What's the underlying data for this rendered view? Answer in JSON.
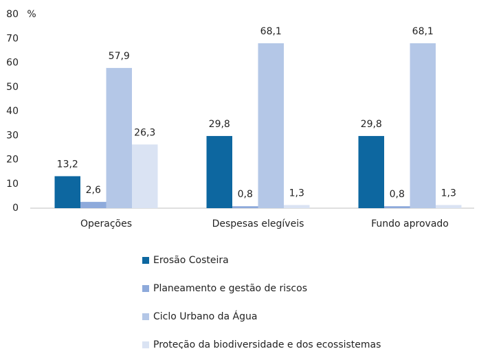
{
  "chart_data": {
    "type": "bar",
    "y_unit": "%",
    "categories": [
      "Operações",
      "Despesas elegíveis",
      "Fundo aprovado"
    ],
    "series": [
      {
        "name": "Erosão Costeira",
        "color": "#0d67a0",
        "values": [
          13.2,
          29.8,
          29.8
        ],
        "value_labels": [
          "13,2",
          "29,8",
          "29,8"
        ]
      },
      {
        "name": "Planeamento e gestão de riscos",
        "color": "#8eaadb",
        "values": [
          2.6,
          0.8,
          0.8
        ],
        "value_labels": [
          "2,6",
          "0,8",
          "0,8"
        ]
      },
      {
        "name": "Ciclo Urbano da Água",
        "color": "#b4c7e7",
        "values": [
          57.9,
          68.1,
          68.1
        ],
        "value_labels": [
          "57,9",
          "68,1",
          "68,1"
        ]
      },
      {
        "name": "Proteção da biodiversidade e dos ecossistemas",
        "color": "#dae3f3",
        "values": [
          26.3,
          1.3,
          1.3
        ],
        "value_labels": [
          "26,3",
          "1,3",
          "1,3"
        ]
      }
    ],
    "ylim": [
      0,
      80
    ],
    "yticks": [
      0,
      10,
      20,
      30,
      40,
      50,
      60,
      70,
      80
    ],
    "grid": false,
    "legend": "bottom"
  }
}
